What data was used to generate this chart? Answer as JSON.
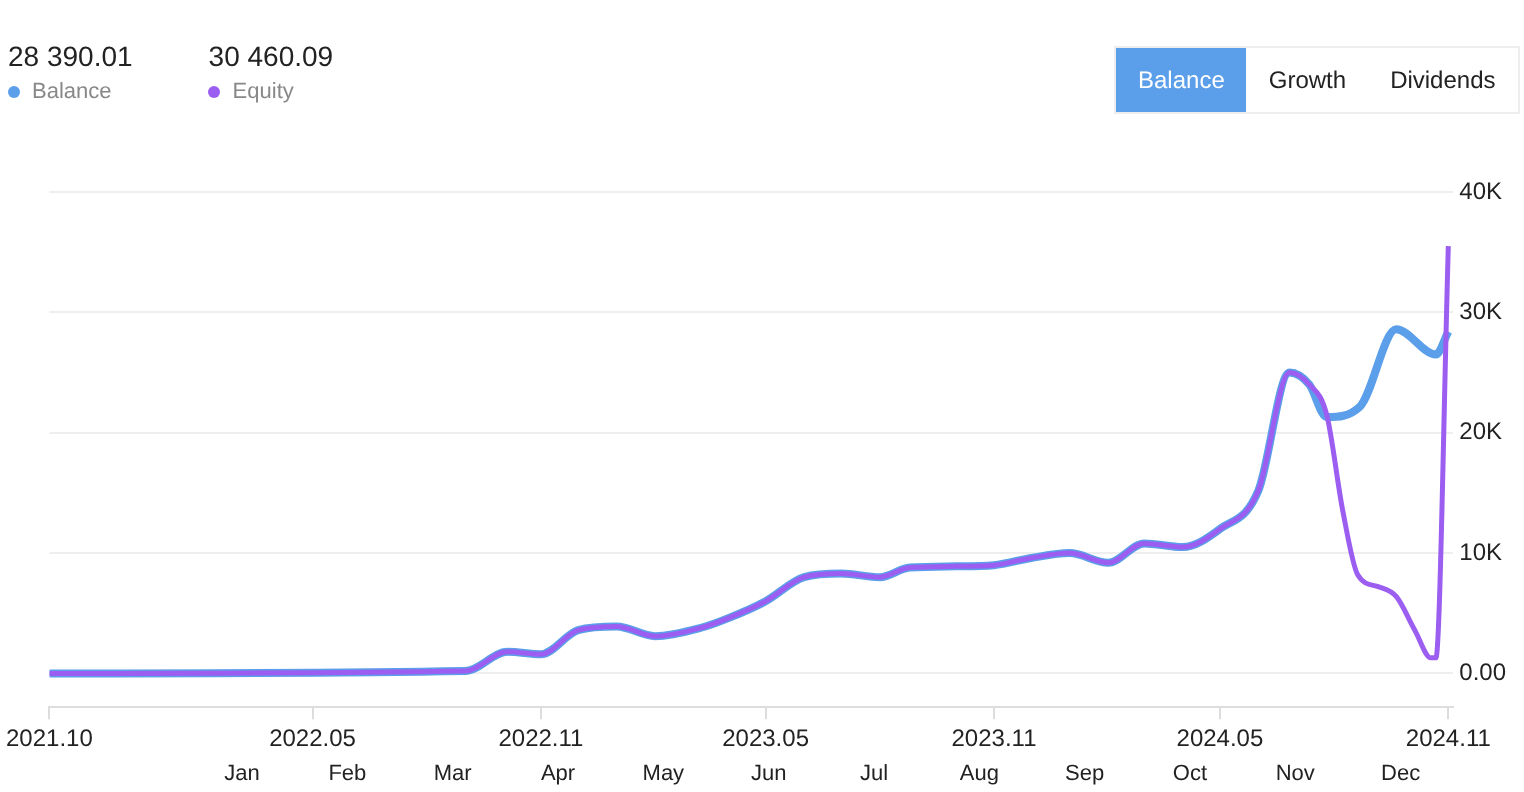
{
  "chart_data": {
    "type": "line",
    "legend": "top left",
    "grid": "y",
    "marker": "none",
    "line_style": "solid",
    "xlim": [
      "2021-10-01",
      "2024-11-05"
    ],
    "xticks": [
      {
        "value": "2021-10-01",
        "label": "2021.10"
      },
      {
        "value": "2022-05-01",
        "label": "2022.05"
      },
      {
        "value": "2022-11-01",
        "label": "2022.11"
      },
      {
        "value": "2023-05-01",
        "label": "2023.05"
      },
      {
        "value": "2023-11-01",
        "label": "2023.11"
      },
      {
        "value": "2024-05-01",
        "label": "2024.05"
      },
      {
        "value": "2024-11-01",
        "label": "2024.11"
      }
    ],
    "ylim": [
      -2800,
      40000
    ],
    "yticks": [
      {
        "value": 0,
        "label": "0.00"
      },
      {
        "value": 10000,
        "label": "10K"
      },
      {
        "value": 20000,
        "label": "20K"
      },
      {
        "value": 30000,
        "label": "30K"
      },
      {
        "value": 40000,
        "label": "40K"
      }
    ],
    "series": [
      {
        "name": "Balance",
        "color": "#5b9ee9",
        "x": [
          "2021-10-01",
          "2022-09-01",
          "2022-10-05",
          "2022-11-01",
          "2022-12-01",
          "2023-01-01",
          "2023-02-01",
          "2023-03-10",
          "2023-04-01",
          "2023-05-01",
          "2023-06-01",
          "2023-07-01",
          "2023-08-01",
          "2023-08-25",
          "2023-10-01",
          "2023-11-01",
          "2023-12-01",
          "2024-01-01",
          "2024-02-01",
          "2024-03-01",
          "2024-04-01",
          "2024-05-01",
          "2024-06-01",
          "2024-06-26",
          "2024-07-12",
          "2024-07-26",
          "2024-08-22",
          "2024-09-20",
          "2024-10-22",
          "2024-11-01"
        ],
        "values": [
          0,
          200,
          1800,
          1600,
          3600,
          3900,
          3100,
          3800,
          4600,
          6000,
          8000,
          8300,
          8000,
          8800,
          8900,
          9000,
          9600,
          10000,
          9200,
          10800,
          10500,
          12000,
          15200,
          25000,
          24000,
          21300,
          22200,
          28600,
          26500,
          28400
        ]
      },
      {
        "name": "Equity",
        "color": "#9c5ef0",
        "x": [
          "2021-10-01",
          "2022-09-01",
          "2022-10-05",
          "2022-11-01",
          "2022-12-01",
          "2023-01-01",
          "2023-02-01",
          "2023-03-10",
          "2023-04-01",
          "2023-05-01",
          "2023-06-01",
          "2023-07-01",
          "2023-08-01",
          "2023-08-25",
          "2023-10-01",
          "2023-11-01",
          "2023-12-01",
          "2024-01-01",
          "2024-02-01",
          "2024-03-01",
          "2024-04-01",
          "2024-05-01",
          "2024-06-01",
          "2024-06-26",
          "2024-07-12",
          "2024-07-26",
          "2024-08-08",
          "2024-08-20",
          "2024-09-06",
          "2024-09-20",
          "2024-10-05",
          "2024-10-18",
          "2024-10-22",
          "2024-11-01"
        ],
        "values": [
          0,
          200,
          1800,
          1600,
          3600,
          3900,
          3100,
          3800,
          4600,
          6000,
          8000,
          8300,
          8000,
          8800,
          8900,
          9000,
          9600,
          10000,
          9200,
          10800,
          10500,
          12000,
          15200,
          25000,
          24000,
          21500,
          13500,
          8200,
          7200,
          6400,
          3600,
          1300,
          1300,
          35500
        ]
      }
    ],
    "annotations": [
      "28 390.01",
      "30 460.09",
      "Balance",
      "Growth",
      "Dividends",
      "Jan",
      "Feb",
      "Mar",
      "Apr",
      "May",
      "Jun",
      "Jul",
      "Aug",
      "Sep",
      "Oct",
      "Nov",
      "Dec"
    ]
  }
}
